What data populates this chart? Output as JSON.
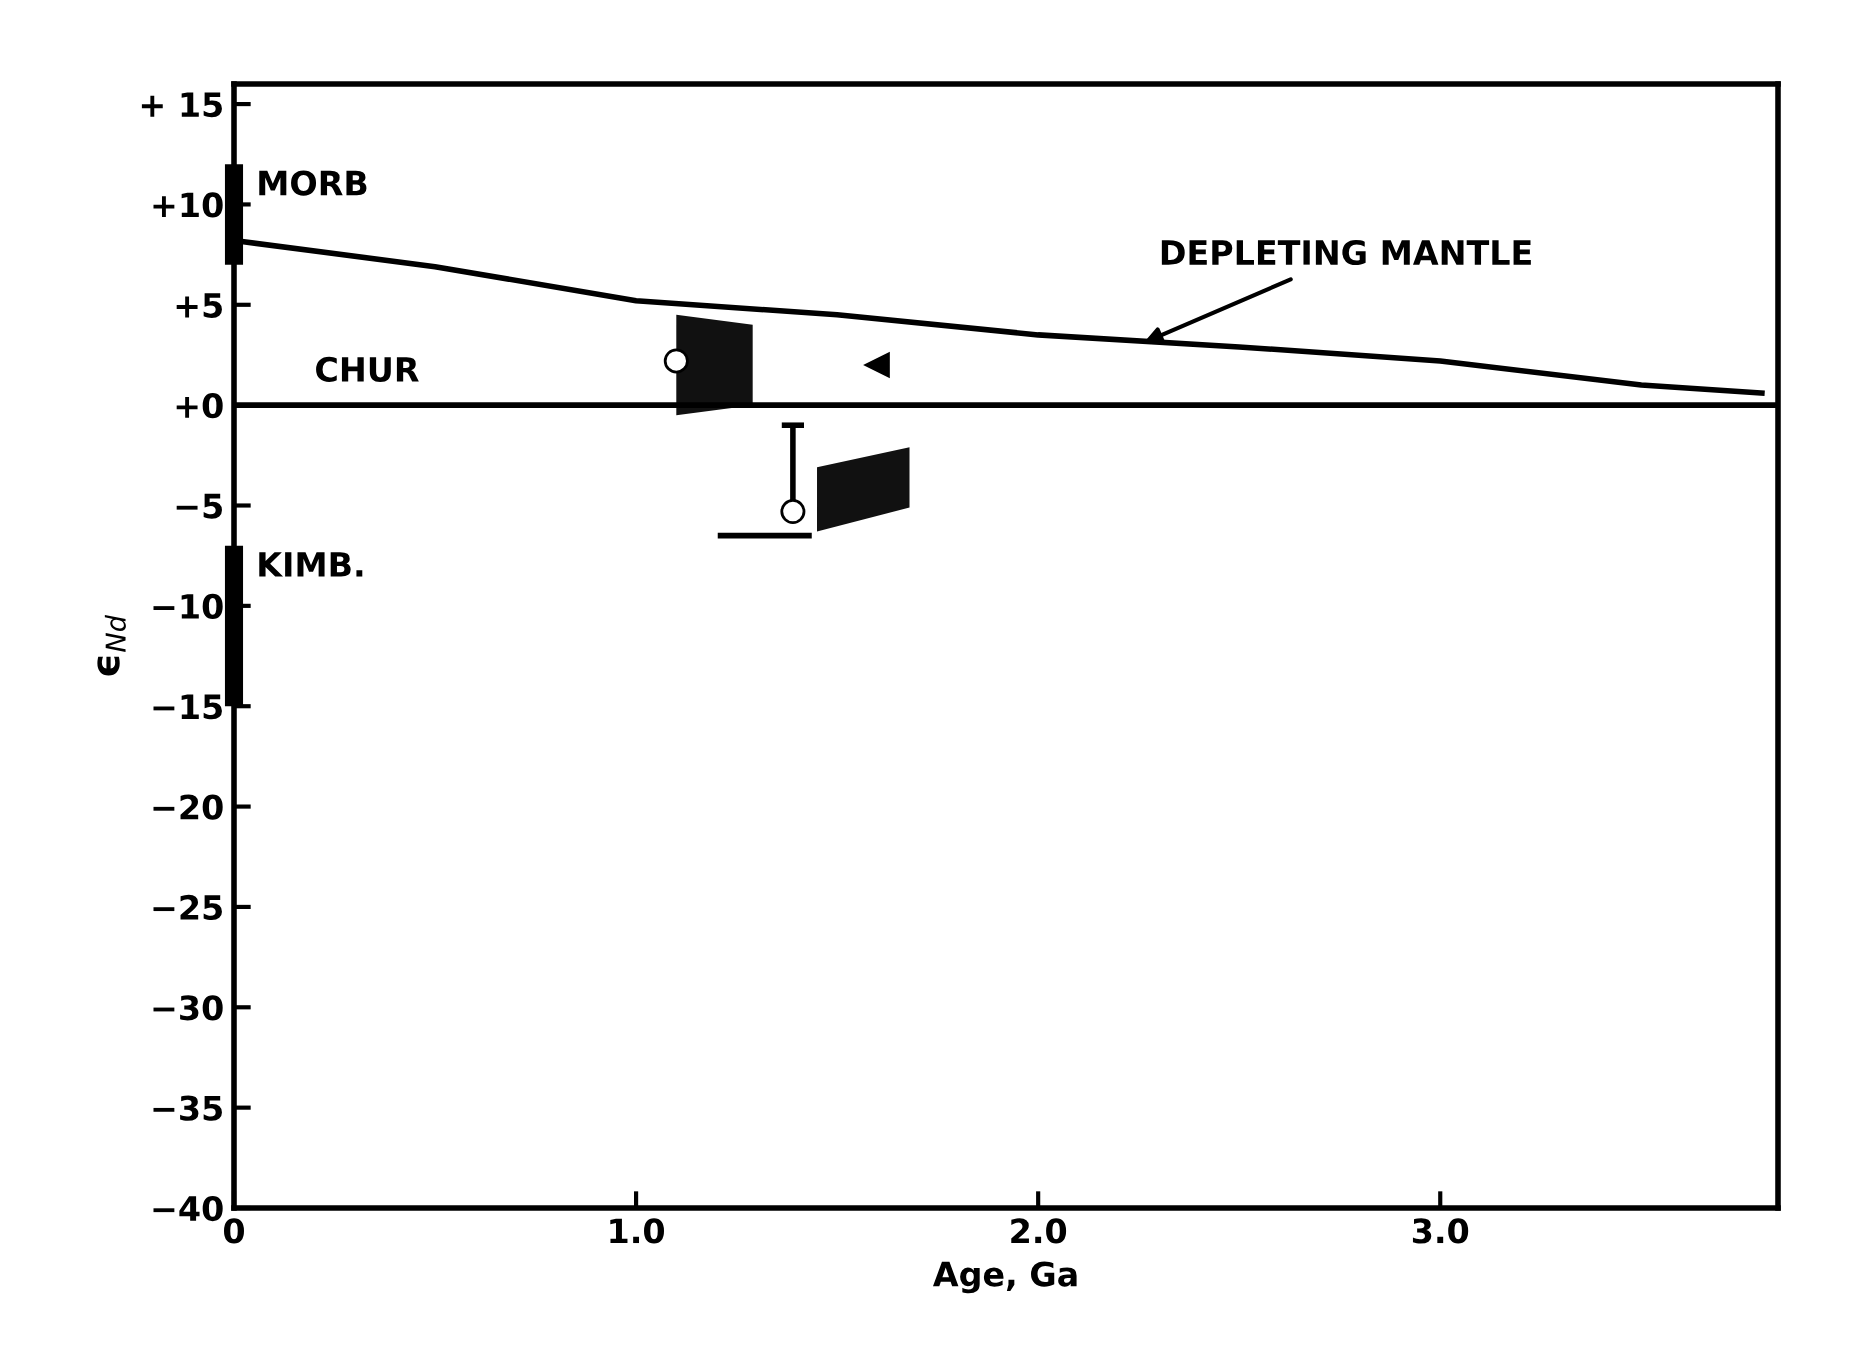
{
  "chart_data": {
    "type": "line",
    "xlabel": "Age, Ga",
    "ylabel": "ϵ$_{Nd}$",
    "xlim": [
      0,
      3.84
    ],
    "ylim": [
      -40,
      16
    ],
    "xticks": [
      0,
      {
        "value": 1,
        "label": "1.0"
      },
      {
        "value": 2,
        "label": "2.0"
      },
      {
        "value": 3,
        "label": "3.0"
      }
    ],
    "yticks": [
      {
        "value": 15,
        "label": "+ 15"
      },
      {
        "value": 10,
        "label": "+10"
      },
      {
        "value": 5,
        "label": "+5"
      },
      {
        "value": 0,
        "label": "+0"
      },
      {
        "value": -5,
        "label": "−5"
      },
      {
        "value": -10,
        "label": "−10"
      },
      {
        "value": -15,
        "label": "−15"
      },
      {
        "value": -20,
        "label": "−20"
      },
      {
        "value": -25,
        "label": "−25"
      },
      {
        "value": -30,
        "label": "−30"
      },
      {
        "value": -35,
        "label": "−35"
      },
      {
        "value": -40,
        "label": "−40"
      }
    ],
    "grid": false,
    "series": [
      {
        "color": "#000000",
        "x": [
          0,
          0.5,
          1,
          1.5,
          2,
          2.5,
          3,
          3.5,
          3.8
        ],
        "values": [
          8.2,
          6.9,
          5.2,
          4.5,
          3.5,
          2.9,
          2.2,
          1.0,
          0.6
        ]
      },
      {
        "color": "#000000",
        "x": [
          0,
          3.84
        ],
        "values": [
          0,
          0
        ]
      },
      {
        "type": "area",
        "color": "#111111",
        "x": [
          1.1,
          1.1,
          1.29,
          1.29
        ],
        "values": [
          -0.5,
          4.5,
          4.0,
          0.0
        ]
      },
      {
        "type": "area",
        "color": "#111111",
        "x": [
          1.45,
          1.45,
          1.68,
          1.68
        ],
        "values": [
          -6.3,
          -3.1,
          -2.1,
          -5.1
        ]
      },
      {
        "type": "bar",
        "color": "#000000",
        "x": [
          0,
          0
        ],
        "base": [
          7,
          -15
        ],
        "values": [
          5,
          8
        ]
      },
      {
        "type": "scatter",
        "color": "#000000",
        "marker": "circle",
        "x": [
          1.1,
          1.39
        ],
        "values": [
          2.2,
          -5.3
        ],
        "errors": [
          null,
          [
            -5.3,
            -1.0
          ]
        ]
      },
      {
        "color": "#000000",
        "x": [
          1.21,
          1.43
        ],
        "values": [
          -6.5,
          -6.5
        ]
      },
      {
        "type": "scatter",
        "color": "#000000",
        "marker": "triangle",
        "x": [
          1.6
        ],
        "values": [
          2.0
        ]
      }
    ],
    "annotations": [
      {
        "text": "MORB",
        "x": 0,
        "y": 12
      },
      {
        "text": "KIMB.",
        "x": 0,
        "y": -7
      },
      {
        "text": "CHUR",
        "x": 0.2,
        "y": 0
      },
      {
        "text": "DEPLETING MANTLE",
        "x": 2.25,
        "y": 3.0
      }
    ]
  }
}
